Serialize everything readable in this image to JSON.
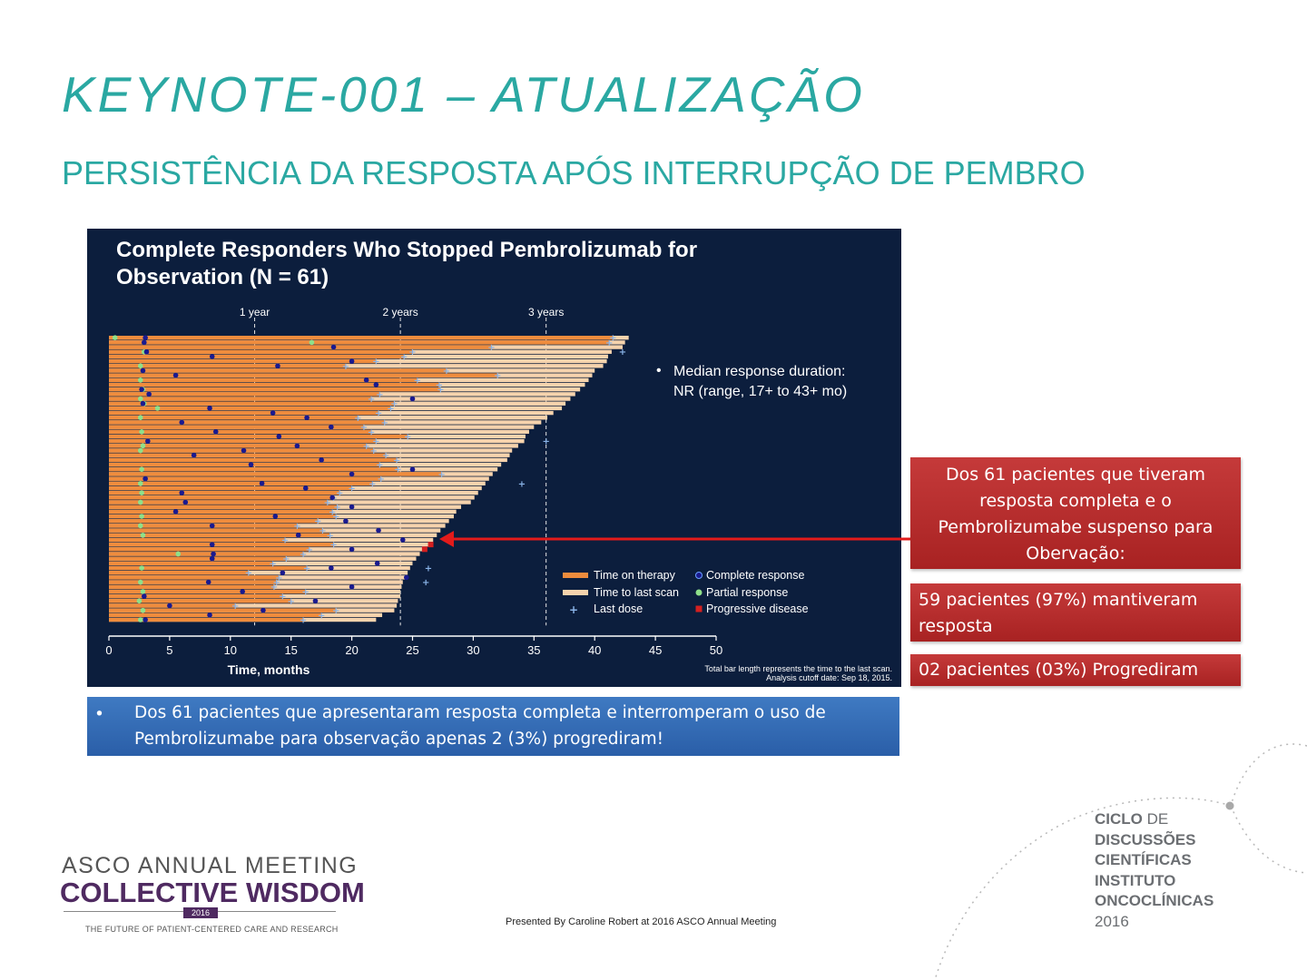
{
  "slide": {
    "title": "KEYNOTE-001 – ATUALIZAÇÃO",
    "subtitle": "PERSISTÊNCIA DA RESPOSTA APÓS INTERRUPÇÃO DE PEMBRO"
  },
  "chart_data": {
    "type": "swimmer",
    "title_line1": "Complete Responders Who Stopped Pembrolizumab for",
    "title_line2": "Observation (N = 61)",
    "xlabel": "Time, months",
    "xlim": [
      0,
      50
    ],
    "xticks": [
      0,
      5,
      10,
      15,
      20,
      25,
      30,
      35,
      40,
      45,
      50
    ],
    "reference_lines": [
      {
        "x": 12,
        "label": "1 year"
      },
      {
        "x": 24,
        "label": "2 years"
      },
      {
        "x": 36,
        "label": "3 years"
      }
    ],
    "annotation_bullet": "•",
    "annotation_line1": "Median response duration:",
    "annotation_line2": "NR (range, 17+ to 43+ mo)",
    "footnote_line1": "Total bar length represents the time to the last scan.",
    "footnote_line2": "Analysis cutoff date: Sep 18, 2015.",
    "legend": [
      {
        "key": "time_on_therapy",
        "label": "Time on therapy",
        "color": "#ef8c3d"
      },
      {
        "key": "time_to_last_scan",
        "label": "Time to last scan",
        "color": "#f6d3ad"
      },
      {
        "key": "last_dose",
        "label": "Last dose",
        "symbol": "+",
        "color": "#8ab4e8"
      },
      {
        "key": "complete_response",
        "label": "Complete response",
        "color": "#1a1a8f"
      },
      {
        "key": "partial_response",
        "label": "Partial response",
        "color": "#8fe08a"
      },
      {
        "key": "progressive_disease",
        "label": "Progressive disease",
        "color": "#d42020"
      }
    ],
    "patients": [
      {
        "therapy": 41.5,
        "total": 42.8,
        "cr": 3.0,
        "pr": 0.5
      },
      {
        "therapy": 41.2,
        "total": 42.5,
        "cr": 2.9,
        "pr": 16.7
      },
      {
        "therapy": 31.5,
        "total": 42.3,
        "cr": 18.5
      },
      {
        "therapy": 25.0,
        "total": 41.4,
        "cr": 3.1,
        "pr": 2.9
      },
      {
        "therapy": 24.3,
        "total": 41.1,
        "cr": 8.5
      },
      {
        "therapy": 22.0,
        "total": 41.0,
        "cr": 20.0
      },
      {
        "therapy": 19.5,
        "total": 40.7,
        "cr": 13.9,
        "pr": 2.6
      },
      {
        "therapy": 27.8,
        "total": 40.0,
        "cr": 2.8
      },
      {
        "therapy": 32.0,
        "total": 39.8,
        "cr": 5.5
      },
      {
        "therapy": 25.4,
        "total": 39.5,
        "cr": 21.2,
        "pr": 2.6
      },
      {
        "therapy": 27.2,
        "total": 39.2,
        "cr": 22.0
      },
      {
        "therapy": 27.3,
        "total": 38.8,
        "cr": 2.7,
        "pr": 2.8
      },
      {
        "therapy": 22.3,
        "total": 38.4,
        "cr": 3.3
      },
      {
        "therapy": 21.6,
        "total": 38.0,
        "cr": 25.0,
        "pr": 2.6
      },
      {
        "therapy": 23.5,
        "total": 37.6,
        "cr": 2.8,
        "pr": 2.9
      },
      {
        "therapy": 23.2,
        "total": 37.3,
        "cr": 8.3,
        "pr": 4.0
      },
      {
        "therapy": 22.2,
        "total": 36.6,
        "cr": 13.5
      },
      {
        "therapy": 20.5,
        "total": 36.1,
        "cr": 16.3,
        "pr": 2.6
      },
      {
        "therapy": 22.7,
        "total": 35.6,
        "cr": 6.0
      },
      {
        "therapy": 21.0,
        "total": 35.0,
        "cr": 18.3
      },
      {
        "therapy": 21.6,
        "total": 34.6,
        "cr": 8.8,
        "pr": 2.7
      },
      {
        "therapy": 24.6,
        "total": 34.3,
        "cr": 14.0
      },
      {
        "therapy": 22.0,
        "total": 34.2,
        "cr": 3.2
      },
      {
        "therapy": 21.2,
        "total": 33.7,
        "cr": 15.5,
        "pr": 2.8
      },
      {
        "therapy": 21.8,
        "total": 33.2,
        "cr": 11.1,
        "pr": 2.6
      },
      {
        "therapy": 22.8,
        "total": 33.0,
        "cr": 7.0
      },
      {
        "therapy": 23.7,
        "total": 32.8,
        "cr": 17.5
      },
      {
        "therapy": 22.3,
        "total": 32.3,
        "cr": 11.7
      },
      {
        "therapy": 23.8,
        "total": 32.0,
        "cr": 25.0,
        "pr": 2.7
      },
      {
        "therapy": 27.4,
        "total": 31.6,
        "cr": 20.0
      },
      {
        "therapy": 22.4,
        "total": 31.3,
        "cr": 3.0
      },
      {
        "therapy": 21.7,
        "total": 31.0,
        "cr": 12.6,
        "pr": 2.6
      },
      {
        "therapy": 20.0,
        "total": 30.7,
        "cr": 16.2
      },
      {
        "therapy": 19.0,
        "total": 30.4,
        "cr": 6.0,
        "pr": 2.7
      },
      {
        "therapy": 18.5,
        "total": 30.1,
        "cr": 18.4
      },
      {
        "therapy": 18.0,
        "total": 29.8,
        "cr": 6.3,
        "pr": 2.6
      },
      {
        "therapy": 18.8,
        "total": 29.0,
        "cr": 20.0
      },
      {
        "therapy": 18.4,
        "total": 28.6,
        "cr": 5.5
      },
      {
        "therapy": 18.7,
        "total": 28.4,
        "cr": 13.7,
        "pr": 2.7
      },
      {
        "therapy": 17.2,
        "total": 28.0,
        "cr": 19.5
      },
      {
        "therapy": 15.5,
        "total": 27.7,
        "cr": 8.5,
        "pr": 2.6
      },
      {
        "therapy": 17.6,
        "total": 27.3,
        "cr": 22.2
      },
      {
        "therapy": 18.2,
        "total": 27.0,
        "cr": 15.6,
        "pr": 2.8
      },
      {
        "therapy": 14.5,
        "total": 26.7,
        "cr": 24.2
      },
      {
        "therapy": 18.5,
        "total": 26.5,
        "cr": 8.5,
        "pd": 26.5
      },
      {
        "therapy": 16.5,
        "total": 26.0,
        "cr": 20.0,
        "pd": 26.0
      },
      {
        "therapy": 16.0,
        "total": 25.6,
        "cr": 8.6,
        "pr": 5.7
      },
      {
        "therapy": 14.6,
        "total": 25.3,
        "cr": 8.5
      },
      {
        "therapy": 13.5,
        "total": 25.0,
        "cr": 22.1
      },
      {
        "therapy": 16.3,
        "total": 24.8,
        "cr": 18.3,
        "pr": 2.7
      },
      {
        "therapy": 11.5,
        "total": 24.6,
        "cr": 14.3
      },
      {
        "therapy": 14.0,
        "total": 24.4,
        "cr": 24.5
      },
      {
        "therapy": 13.8,
        "total": 24.2,
        "cr": 8.2,
        "pr": 2.6
      },
      {
        "therapy": 13.6,
        "total": 24.1,
        "cr": 20.0
      },
      {
        "therapy": 16.2,
        "total": 24.0,
        "cr": 11.0,
        "pr": 2.8
      },
      {
        "therapy": 14.3,
        "total": 24.0,
        "cr": 2.9
      },
      {
        "therapy": 15.0,
        "total": 23.8,
        "cr": 17.0,
        "pr": 2.5
      },
      {
        "therapy": 10.4,
        "total": 23.7,
        "cr": 5.0
      },
      {
        "therapy": 18.7,
        "total": 23.5,
        "cr": 12.7,
        "pr": 2.8
      },
      {
        "therapy": 17.5,
        "total": 22.5,
        "cr": 8.3
      },
      {
        "therapy": 16.0,
        "total": 22.0,
        "cr": 3.0,
        "pr": 2.6
      }
    ],
    "extra_last_dose_markers": [
      {
        "patient": 3,
        "x": 42.3
      },
      {
        "patient": 22,
        "x": 36.0
      },
      {
        "patient": 31,
        "x": 34.0
      },
      {
        "patient": 49,
        "x": 26.3
      },
      {
        "patient": 52,
        "x": 26.1
      }
    ]
  },
  "callouts": {
    "main": "Dos 61 pacientes que tiveram resposta completa e o Pembrolizumabe suspenso para Obervação:",
    "stat1": "59 pacientes (97%) mantiveram resposta",
    "stat2": "02 pacientes (03%) Progrediram"
  },
  "bullet": {
    "marker": "•",
    "text": "Dos 61 pacientes que apresentaram resposta completa e interromperam o uso de Pembrolizumabe para observação apenas 2 (3%) progrediram!"
  },
  "logo": {
    "line1": "ASCO ANNUAL MEETING",
    "line2": "COLLECTIVE WISDOM",
    "year": "2016",
    "tagline": "THE FUTURE OF PATIENT-CENTERED CARE AND RESEARCH"
  },
  "footer": {
    "credit": "Presented By Caroline Robert at 2016 ASCO Annual Meeting"
  },
  "ciclo": {
    "line1_bold": "CICLO",
    "line1_rest": " DE",
    "line2": "DISCUSSÕES",
    "line3": "CIENTÍFICAS",
    "line4": "INSTITUTO",
    "line5": "ONCOCLÍNICAS",
    "line6": "2016"
  },
  "colors": {
    "accent_teal": "#2aa8a2",
    "chart_background": "#0c1e3d",
    "callout_red": "#b52b2b",
    "bullet_blue": "#3469b3",
    "asco_purple": "#4f2a61"
  }
}
